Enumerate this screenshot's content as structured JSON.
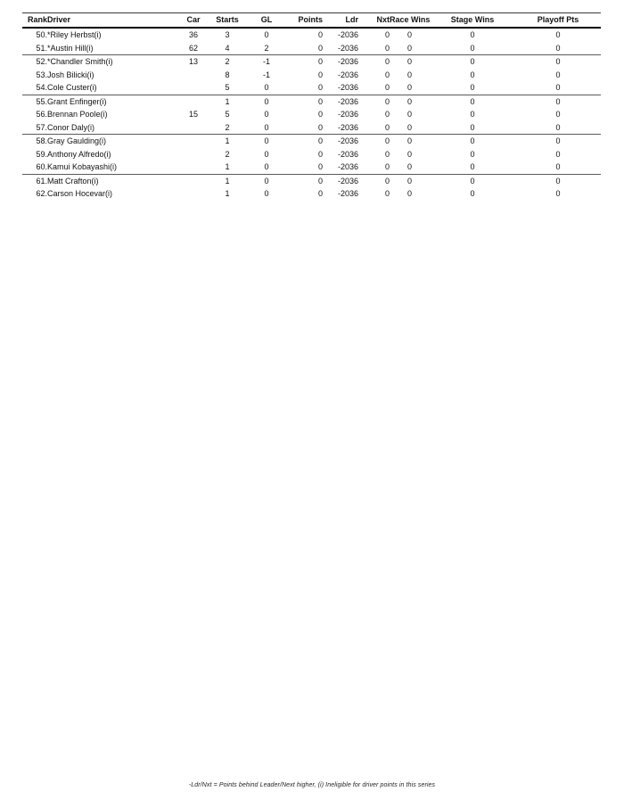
{
  "table": {
    "columns": [
      {
        "key": "rank",
        "label": "Rank"
      },
      {
        "key": "driver",
        "label": "Driver"
      },
      {
        "key": "car",
        "label": "Car"
      },
      {
        "key": "starts",
        "label": "Starts"
      },
      {
        "key": "gl",
        "label": "GL"
      },
      {
        "key": "points",
        "label": "Points"
      },
      {
        "key": "ldr",
        "label": "Ldr"
      },
      {
        "key": "nxt",
        "label": "Nxt"
      },
      {
        "key": "race_wins",
        "label": "Race Wins"
      },
      {
        "key": "stage_wins",
        "label": "Stage Wins"
      },
      {
        "key": "playoff_pts",
        "label": "Playoff Pts"
      }
    ],
    "rows": [
      {
        "rank": "50.",
        "driver": "*Riley Herbst(i)",
        "car": "36",
        "starts": "3",
        "gl": "0",
        "points": "0",
        "ldr": "-2036",
        "nxt": "0",
        "race_wins": "0",
        "stage_wins": "0",
        "playoff_pts": "0"
      },
      {
        "rank": "51.",
        "driver": "*Austin Hill(i)",
        "car": "62",
        "starts": "4",
        "gl": "2",
        "points": "0",
        "ldr": "-2036",
        "nxt": "0",
        "race_wins": "0",
        "stage_wins": "0",
        "playoff_pts": "0"
      },
      {
        "rank": "52.",
        "driver": "*Chandler Smith(i)",
        "car": "13",
        "starts": "2",
        "gl": "-1",
        "points": "0",
        "ldr": "-2036",
        "nxt": "0",
        "race_wins": "0",
        "stage_wins": "0",
        "playoff_pts": "0"
      },
      {
        "rank": "53.",
        "driver": "Josh Bilicki(i)",
        "car": "",
        "starts": "8",
        "gl": "-1",
        "points": "0",
        "ldr": "-2036",
        "nxt": "0",
        "race_wins": "0",
        "stage_wins": "0",
        "playoff_pts": "0"
      },
      {
        "rank": "54.",
        "driver": "Cole Custer(i)",
        "car": "",
        "starts": "5",
        "gl": "0",
        "points": "0",
        "ldr": "-2036",
        "nxt": "0",
        "race_wins": "0",
        "stage_wins": "0",
        "playoff_pts": "0"
      },
      {
        "rank": "55.",
        "driver": "Grant Enfinger(i)",
        "car": "",
        "starts": "1",
        "gl": "0",
        "points": "0",
        "ldr": "-2036",
        "nxt": "0",
        "race_wins": "0",
        "stage_wins": "0",
        "playoff_pts": "0"
      },
      {
        "rank": "56.",
        "driver": "Brennan Poole(i)",
        "car": "15",
        "starts": "5",
        "gl": "0",
        "points": "0",
        "ldr": "-2036",
        "nxt": "0",
        "race_wins": "0",
        "stage_wins": "0",
        "playoff_pts": "0"
      },
      {
        "rank": "57.",
        "driver": "Conor Daly(i)",
        "car": "",
        "starts": "2",
        "gl": "0",
        "points": "0",
        "ldr": "-2036",
        "nxt": "0",
        "race_wins": "0",
        "stage_wins": "0",
        "playoff_pts": "0"
      },
      {
        "rank": "58.",
        "driver": "Gray Gaulding(i)",
        "car": "",
        "starts": "1",
        "gl": "0",
        "points": "0",
        "ldr": "-2036",
        "nxt": "0",
        "race_wins": "0",
        "stage_wins": "0",
        "playoff_pts": "0"
      },
      {
        "rank": "59.",
        "driver": "Anthony Alfredo(i)",
        "car": "",
        "starts": "2",
        "gl": "0",
        "points": "0",
        "ldr": "-2036",
        "nxt": "0",
        "race_wins": "0",
        "stage_wins": "0",
        "playoff_pts": "0"
      },
      {
        "rank": "60.",
        "driver": "Kamui Kobayashi(i)",
        "car": "",
        "starts": "1",
        "gl": "0",
        "points": "0",
        "ldr": "-2036",
        "nxt": "0",
        "race_wins": "0",
        "stage_wins": "0",
        "playoff_pts": "0"
      },
      {
        "rank": "61.",
        "driver": "Matt Crafton(i)",
        "car": "",
        "starts": "1",
        "gl": "0",
        "points": "0",
        "ldr": "-2036",
        "nxt": "0",
        "race_wins": "0",
        "stage_wins": "0",
        "playoff_pts": "0"
      },
      {
        "rank": "62.",
        "driver": "Carson Hocevar(i)",
        "car": "",
        "starts": "1",
        "gl": "0",
        "points": "0",
        "ldr": "-2036",
        "nxt": "0",
        "race_wins": "0",
        "stage_wins": "0",
        "playoff_pts": "0"
      }
    ],
    "group_breaks_after_row_index": [
      1,
      4,
      7,
      10
    ]
  },
  "footnote": "-Ldr/Nxt = Points behind Leader/Next higher, (i) Ineligible for driver points in this series",
  "colors": {
    "text": "#111111",
    "rule_black": "#000000",
    "rule_gray": "#5a5a5a"
  }
}
